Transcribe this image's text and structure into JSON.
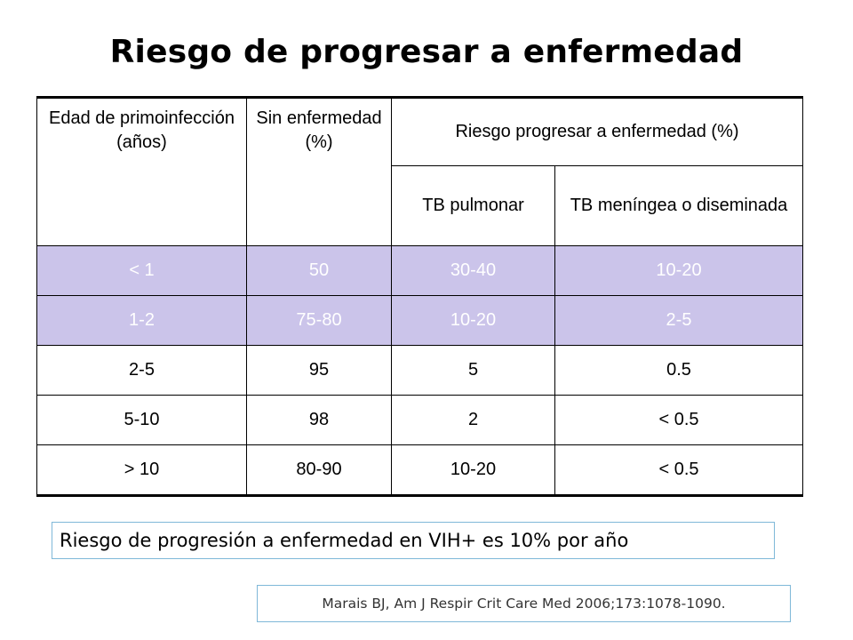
{
  "title": "Riesgo de progresar a enfermedad",
  "table": {
    "headers": {
      "age": "Edad de primoinfección (años)",
      "sin": "Sin enfermedad (%)",
      "riesgo": "Riesgo progresar a enfermedad (%)",
      "pulmonar": "TB pulmonar",
      "meningea": "TB meníngea o diseminada"
    },
    "rows": [
      {
        "age": "< 1",
        "sin": "50",
        "pulmonar": "30-40",
        "meningea": "10-20"
      },
      {
        "age": "1-2",
        "sin": "75-80",
        "pulmonar": "10-20",
        "meningea": "2-5"
      },
      {
        "age": "2-5",
        "sin": "95",
        "pulmonar": "5",
        "meningea": "0.5"
      },
      {
        "age": "5-10",
        "sin": "98",
        "pulmonar": "2",
        "meningea": "< 0.5"
      },
      {
        "age": "> 10",
        "sin": "80-90",
        "pulmonar": "10-20",
        "meningea": "< 0.5"
      }
    ],
    "highlight_color": "#cbc4ea"
  },
  "note": "Riesgo de progresión a enfermedad en VIH+ es 10% por año",
  "reference": "Marais BJ, Am J Respir Crit Care Med 2006;173:1078-1090."
}
